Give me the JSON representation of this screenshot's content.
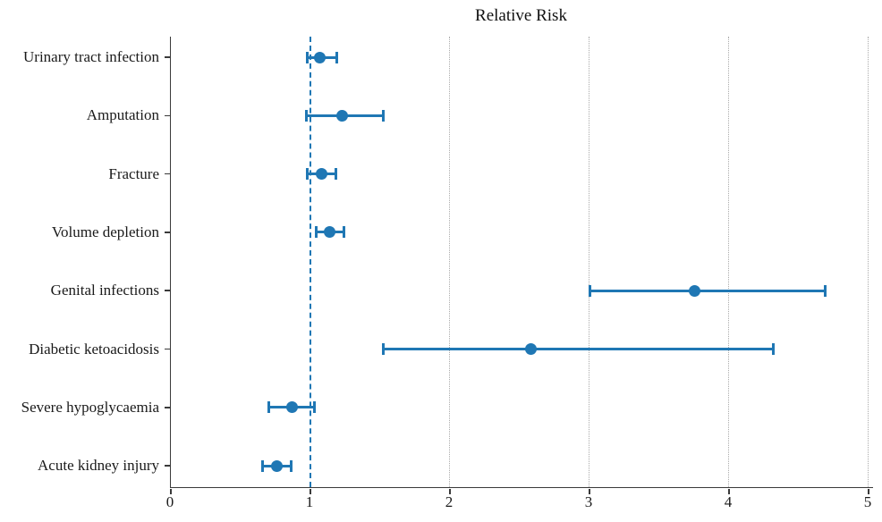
{
  "chart_data": {
    "type": "scatter",
    "subtype": "forest-plot-with-error-bars",
    "title": "Relative Risk",
    "xlabel": "",
    "ylabel": "",
    "x_axis": {
      "min": 0,
      "max": 5,
      "ticks": [
        0,
        1,
        2,
        3,
        4,
        5
      ]
    },
    "reference_line_x": 1,
    "gridlines_x": [
      2,
      3,
      4,
      5
    ],
    "grid": "vertical dotted",
    "legend": "none",
    "categories": [
      "Urinary tract infection",
      "Amputation",
      "Fracture",
      "Volume depletion",
      "Genital infections",
      "Diabetic ketoacidosis",
      "Severe hypoglycaemia",
      "Acute kidney injury"
    ],
    "values": [
      1.07,
      1.23,
      1.08,
      1.14,
      3.75,
      2.58,
      0.87,
      0.76
    ],
    "ci_low": [
      0.98,
      0.97,
      0.98,
      1.04,
      3.0,
      1.52,
      0.7,
      0.66
    ],
    "ci_high": [
      1.19,
      1.52,
      1.18,
      1.24,
      4.69,
      4.32,
      1.03,
      0.86
    ],
    "colors": {
      "point": "#1f77b4",
      "error_bar": "#1f77b4",
      "reference_line": "#1f77b4",
      "gridline": "#ababab",
      "axis": "#3a3a3a",
      "text": "#1a1a1a",
      "background": "#ffffff"
    }
  }
}
